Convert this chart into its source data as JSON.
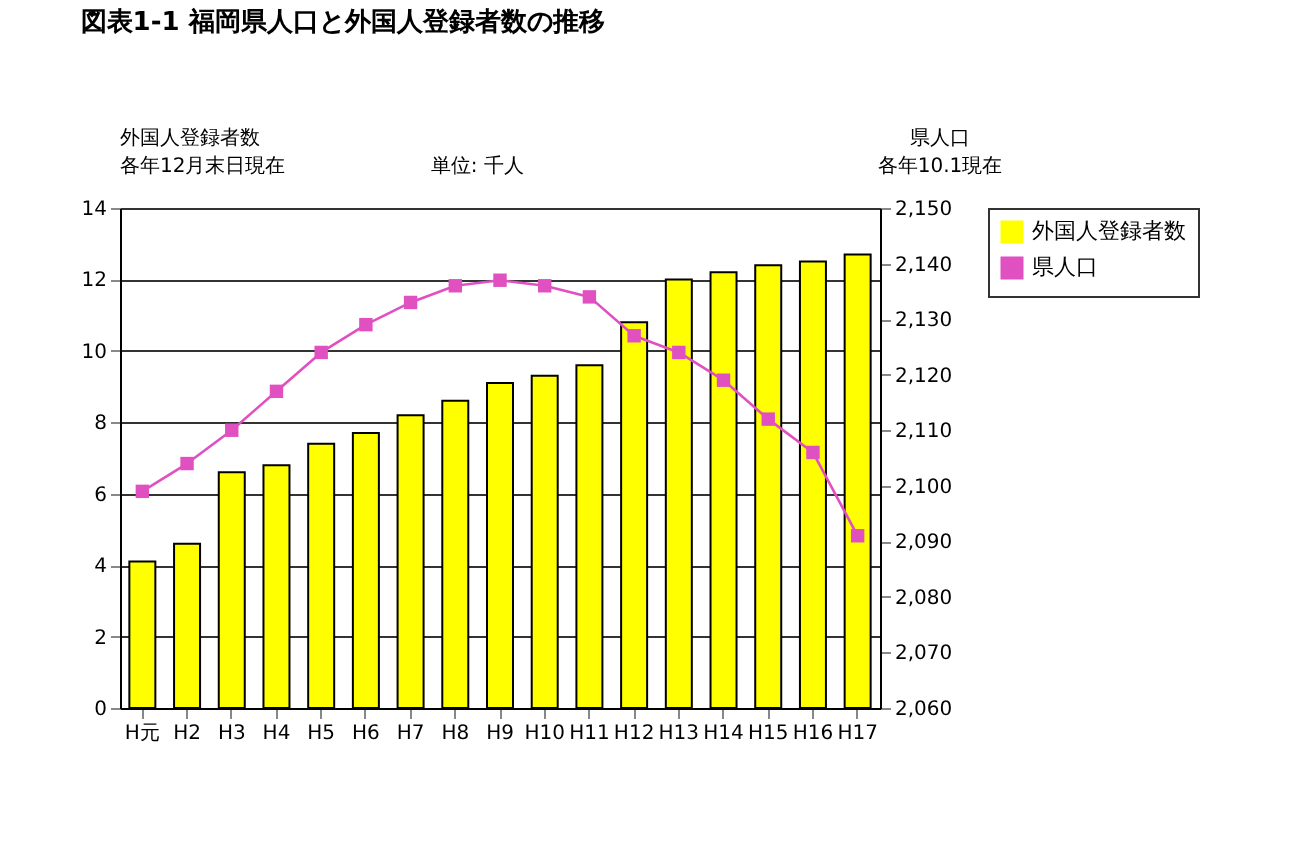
{
  "chart_data": {
    "type": "bar",
    "title": "図表1-1 福岡県人口と外国人登録者数の推移",
    "categories": [
      "H元",
      "H2",
      "H3",
      "H4",
      "H5",
      "H6",
      "H7",
      "H8",
      "H9",
      "H10",
      "H11",
      "H12",
      "H13",
      "H14",
      "H15",
      "H16",
      "H17"
    ],
    "series": [
      {
        "name": "外国人登録者数",
        "color": "#ffff00",
        "values": [
          4.1,
          4.6,
          6.6,
          6.8,
          7.4,
          7.7,
          8.2,
          8.6,
          9.1,
          9.3,
          9.6,
          10.8,
          12.0,
          12.2,
          12.4,
          12.5,
          12.7
        ]
      },
      {
        "name": "県人口",
        "type": "line",
        "axis": "y2",
        "color": "#e050c0",
        "marker": "square",
        "values": [
          2099,
          2104,
          2110,
          2117,
          2124,
          2129,
          2133,
          2136,
          2137,
          2136,
          2134,
          2127,
          2124,
          2119,
          2112,
          2106,
          2091
        ]
      }
    ],
    "ylim": [
      0,
      14
    ],
    "yticks": [
      0,
      2,
      4,
      6,
      8,
      10,
      12,
      14
    ],
    "y2lim": [
      2060,
      2150
    ],
    "y2ticks": [
      {
        "value": 2060,
        "label": "2,060"
      },
      {
        "value": 2070,
        "label": "2,070"
      },
      {
        "value": 2080,
        "label": "2,080"
      },
      {
        "value": 2090,
        "label": "2,090"
      },
      {
        "value": 2100,
        "label": "2,100"
      },
      {
        "value": 2110,
        "label": "2,110"
      },
      {
        "value": 2120,
        "label": "2,120"
      },
      {
        "value": 2130,
        "label": "2,130"
      },
      {
        "value": 2140,
        "label": "2,140"
      },
      {
        "value": 2150,
        "label": "2,150"
      }
    ],
    "grid": "y",
    "legend": "right",
    "annotations": [
      "外国人登録者数",
      "各年12月末日現在",
      "単位: 千人",
      "県人口",
      "各年10.1現在"
    ]
  }
}
